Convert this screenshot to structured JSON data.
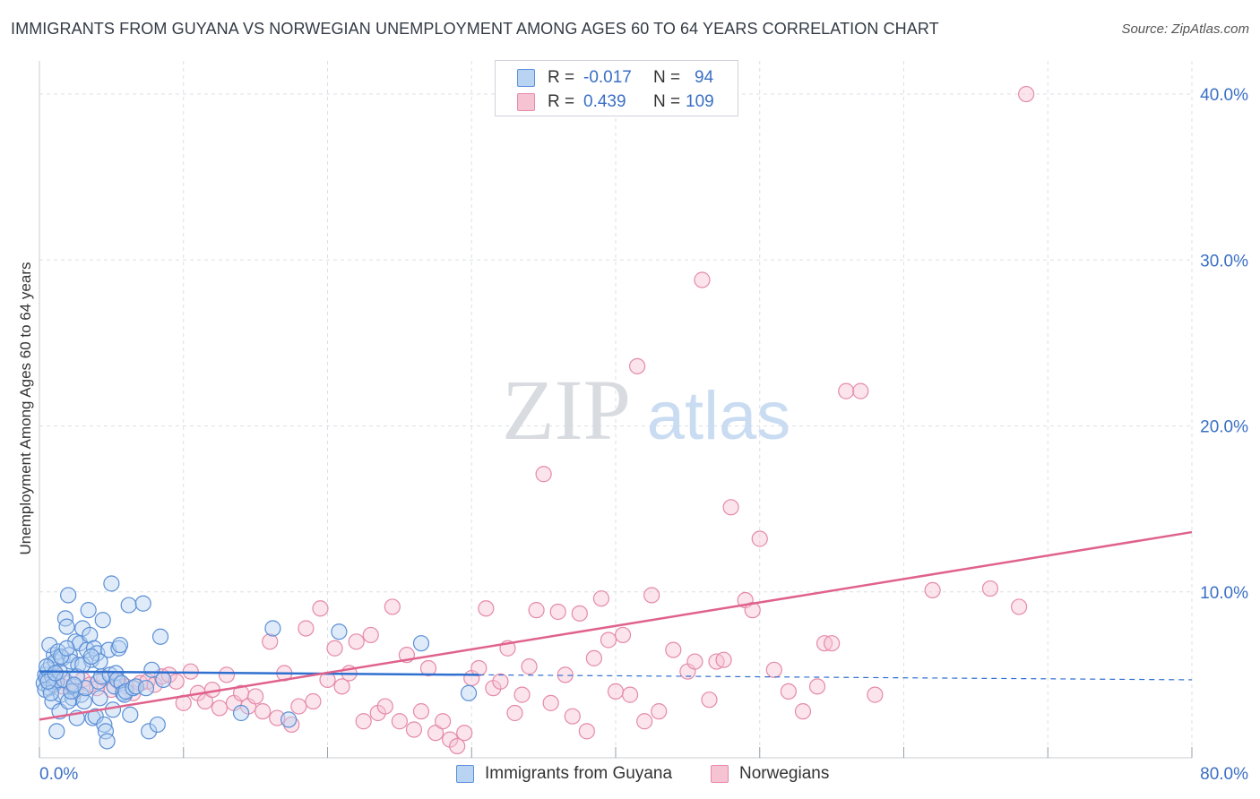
{
  "header": {
    "title": "IMMIGRANTS FROM GUYANA VS NORWEGIAN UNEMPLOYMENT AMONG AGES 60 TO 64 YEARS CORRELATION CHART",
    "source": "Source: ZipAtlas.com"
  },
  "watermark": {
    "zip": "ZIP",
    "atlas": "atlas"
  },
  "legend": {
    "rows": [
      {
        "r_label": "R =",
        "r_value": "-0.017",
        "n_label": "N =",
        "n_value": "94"
      },
      {
        "r_label": "R =",
        "r_value": "0.439",
        "n_label": "N =",
        "n_value": "109"
      }
    ]
  },
  "bottom_legend": {
    "series0": "Immigrants from Guyana",
    "series1": "Norwegians"
  },
  "colors": {
    "blue_fill": "#b9d3f2",
    "blue_stroke": "#5b8fd6",
    "blue_line": "#2f6fcf",
    "pink_fill": "#f6c3d3",
    "pink_stroke": "#e58aa9",
    "pink_line": "#e0628c",
    "tick_text": "#3a6fc4",
    "grid": "#dcdfe4"
  },
  "chart_data": {
    "type": "scatter",
    "title": "IMMIGRANTS FROM GUYANA VS NORWEGIAN UNEMPLOYMENT AMONG AGES 60 TO 64 YEARS CORRELATION CHART",
    "xlabel": "",
    "ylabel": "Unemployment Among Ages 60 to 64 years",
    "xlim": [
      0,
      80
    ],
    "ylim": [
      0,
      42
    ],
    "x_tick_labels": [
      "0.0%",
      "80.0%"
    ],
    "y_ticks": [
      10,
      20,
      30,
      40
    ],
    "y_tick_labels": [
      "10.0%",
      "20.0%",
      "30.0%",
      "40.0%"
    ],
    "series": [
      {
        "name": "Immigrants from Guyana",
        "color": "blue",
        "trend": {
          "x": [
            0,
            30.5
          ],
          "y": [
            5.2,
            5.0
          ],
          "dashed_to": [
            80,
            4.7
          ]
        },
        "points": [
          [
            0.3,
            4.5
          ],
          [
            0.4,
            5.0
          ],
          [
            0.5,
            4.8
          ],
          [
            0.6,
            5.3
          ],
          [
            0.7,
            4.2
          ],
          [
            0.8,
            5.6
          ],
          [
            0.9,
            4.9
          ],
          [
            1.0,
            6.2
          ],
          [
            1.1,
            5.8
          ],
          [
            1.2,
            4.6
          ],
          [
            0.4,
            4.1
          ],
          [
            0.5,
            5.5
          ],
          [
            0.7,
            6.8
          ],
          [
            0.9,
            3.4
          ],
          [
            1.0,
            4.4
          ],
          [
            1.3,
            6.4
          ],
          [
            1.4,
            5.2
          ],
          [
            1.5,
            3.8
          ],
          [
            1.6,
            6.0
          ],
          [
            1.7,
            4.7
          ],
          [
            1.8,
            8.4
          ],
          [
            1.9,
            7.9
          ],
          [
            2.0,
            9.8
          ],
          [
            2.1,
            6.2
          ],
          [
            2.2,
            5.8
          ],
          [
            2.3,
            3.6
          ],
          [
            2.4,
            4.3
          ],
          [
            2.5,
            7.0
          ],
          [
            2.6,
            2.4
          ],
          [
            2.7,
            5.6
          ],
          [
            2.8,
            6.9
          ],
          [
            2.9,
            3.8
          ],
          [
            3.0,
            7.8
          ],
          [
            3.1,
            3.4
          ],
          [
            3.2,
            4.2
          ],
          [
            3.3,
            6.5
          ],
          [
            3.4,
            8.9
          ],
          [
            3.5,
            7.4
          ],
          [
            3.6,
            5.9
          ],
          [
            3.7,
            2.4
          ],
          [
            3.8,
            6.6
          ],
          [
            3.9,
            2.5
          ],
          [
            4.0,
            6.3
          ],
          [
            4.1,
            4.6
          ],
          [
            4.2,
            3.6
          ],
          [
            4.3,
            4.9
          ],
          [
            4.4,
            8.3
          ],
          [
            4.5,
            2.0
          ],
          [
            4.6,
            1.6
          ],
          [
            4.7,
            1.0
          ],
          [
            4.8,
            6.5
          ],
          [
            4.9,
            5.0
          ],
          [
            5.0,
            10.5
          ],
          [
            5.1,
            2.9
          ],
          [
            5.2,
            4.3
          ],
          [
            5.3,
            5.1
          ],
          [
            5.4,
            4.7
          ],
          [
            5.5,
            6.6
          ],
          [
            5.6,
            6.8
          ],
          [
            5.7,
            4.5
          ],
          [
            5.8,
            3.9
          ],
          [
            5.9,
            3.8
          ],
          [
            6.0,
            4.0
          ],
          [
            6.2,
            9.2
          ],
          [
            6.3,
            2.6
          ],
          [
            6.5,
            4.2
          ],
          [
            6.7,
            4.3
          ],
          [
            7.2,
            9.3
          ],
          [
            7.4,
            4.2
          ],
          [
            7.6,
            1.6
          ],
          [
            7.8,
            5.3
          ],
          [
            8.2,
            2.0
          ],
          [
            8.4,
            7.3
          ],
          [
            8.6,
            4.7
          ],
          [
            1.2,
            1.6
          ],
          [
            1.4,
            2.8
          ],
          [
            2.0,
            3.4
          ],
          [
            0.8,
            3.9
          ],
          [
            0.6,
            4.6
          ],
          [
            1.1,
            5.1
          ],
          [
            1.5,
            6.1
          ],
          [
            1.9,
            6.6
          ],
          [
            2.2,
            4.0
          ],
          [
            2.6,
            4.9
          ],
          [
            3.0,
            5.6
          ],
          [
            14.0,
            2.7
          ],
          [
            16.2,
            7.8
          ],
          [
            17.3,
            2.3
          ],
          [
            20.8,
            7.6
          ],
          [
            26.5,
            6.9
          ],
          [
            29.8,
            3.9
          ],
          [
            4.2,
            5.8
          ],
          [
            3.6,
            6.1
          ],
          [
            2.4,
            4.4
          ]
        ]
      },
      {
        "name": "Norwegians",
        "color": "pink",
        "trend": {
          "x": [
            0,
            80
          ],
          "y": [
            2.3,
            13.6
          ]
        },
        "points": [
          [
            0.8,
            4.6
          ],
          [
            1.2,
            4.9
          ],
          [
            1.6,
            4.3
          ],
          [
            2.0,
            4.5
          ],
          [
            2.5,
            4.0
          ],
          [
            3.0,
            4.7
          ],
          [
            3.5,
            4.4
          ],
          [
            4.0,
            4.2
          ],
          [
            4.5,
            4.8
          ],
          [
            5.0,
            4.1
          ],
          [
            5.5,
            4.6
          ],
          [
            6.0,
            4.3
          ],
          [
            6.5,
            3.9
          ],
          [
            7.0,
            4.5
          ],
          [
            7.5,
            4.6
          ],
          [
            8.0,
            4.4
          ],
          [
            8.5,
            4.9
          ],
          [
            9.0,
            5.0
          ],
          [
            9.5,
            4.6
          ],
          [
            10.0,
            3.3
          ],
          [
            10.5,
            5.2
          ],
          [
            11.0,
            3.9
          ],
          [
            11.5,
            3.4
          ],
          [
            12.0,
            4.1
          ],
          [
            12.5,
            3.0
          ],
          [
            13.0,
            5.0
          ],
          [
            13.5,
            3.3
          ],
          [
            14.0,
            3.9
          ],
          [
            14.5,
            3.1
          ],
          [
            15.0,
            3.7
          ],
          [
            15.5,
            2.8
          ],
          [
            16.0,
            7.0
          ],
          [
            16.5,
            2.4
          ],
          [
            17.0,
            5.1
          ],
          [
            17.5,
            2.0
          ],
          [
            18.0,
            3.1
          ],
          [
            18.5,
            7.8
          ],
          [
            19.0,
            3.4
          ],
          [
            19.5,
            9.0
          ],
          [
            20.0,
            4.7
          ],
          [
            20.5,
            6.6
          ],
          [
            21.0,
            4.3
          ],
          [
            21.5,
            5.1
          ],
          [
            22.0,
            7.0
          ],
          [
            22.5,
            2.2
          ],
          [
            23.0,
            7.4
          ],
          [
            23.5,
            2.7
          ],
          [
            24.0,
            3.1
          ],
          [
            24.5,
            9.1
          ],
          [
            25.0,
            2.2
          ],
          [
            25.5,
            6.2
          ],
          [
            26.0,
            1.7
          ],
          [
            26.5,
            2.8
          ],
          [
            27.0,
            5.4
          ],
          [
            27.5,
            1.5
          ],
          [
            28.0,
            2.2
          ],
          [
            28.5,
            1.1
          ],
          [
            29.0,
            0.7
          ],
          [
            29.5,
            1.5
          ],
          [
            30.0,
            4.8
          ],
          [
            30.5,
            5.4
          ],
          [
            31.0,
            9.0
          ],
          [
            31.5,
            4.2
          ],
          [
            32.0,
            4.6
          ],
          [
            32.5,
            6.6
          ],
          [
            33.0,
            2.7
          ],
          [
            33.5,
            3.8
          ],
          [
            34.0,
            5.5
          ],
          [
            34.5,
            8.9
          ],
          [
            35.0,
            17.1
          ],
          [
            35.5,
            3.3
          ],
          [
            36.0,
            8.8
          ],
          [
            36.5,
            5.0
          ],
          [
            37.0,
            2.5
          ],
          [
            37.5,
            8.7
          ],
          [
            38.0,
            1.6
          ],
          [
            38.5,
            6.0
          ],
          [
            39.0,
            9.6
          ],
          [
            39.5,
            7.1
          ],
          [
            40.0,
            4.0
          ],
          [
            40.5,
            7.4
          ],
          [
            41.0,
            3.8
          ],
          [
            41.5,
            23.6
          ],
          [
            42.0,
            2.2
          ],
          [
            42.5,
            9.8
          ],
          [
            43.0,
            2.8
          ],
          [
            44.0,
            6.5
          ],
          [
            45.0,
            5.2
          ],
          [
            45.5,
            5.8
          ],
          [
            46.0,
            28.8
          ],
          [
            46.5,
            3.5
          ],
          [
            47.0,
            5.8
          ],
          [
            47.5,
            5.9
          ],
          [
            48.0,
            15.1
          ],
          [
            49.0,
            9.5
          ],
          [
            49.5,
            8.9
          ],
          [
            50.0,
            13.2
          ],
          [
            51.0,
            5.3
          ],
          [
            52.0,
            4.0
          ],
          [
            53.0,
            2.8
          ],
          [
            54.0,
            4.3
          ],
          [
            54.5,
            6.9
          ],
          [
            55.0,
            6.9
          ],
          [
            56.0,
            22.1
          ],
          [
            57.0,
            22.1
          ],
          [
            58.0,
            3.8
          ],
          [
            62.0,
            10.1
          ],
          [
            66.0,
            10.2
          ],
          [
            68.0,
            9.1
          ],
          [
            68.5,
            40.0
          ]
        ]
      }
    ]
  }
}
